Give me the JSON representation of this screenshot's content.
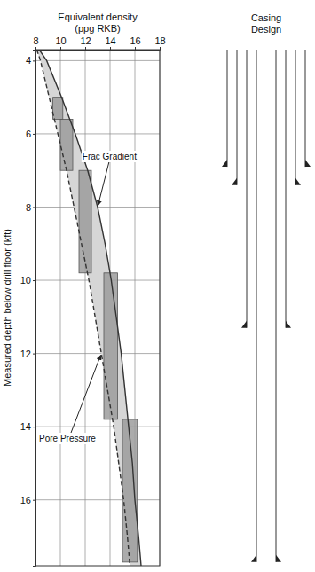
{
  "chart_data": {
    "type": "line",
    "x_label": "Equivalent density (ppg RKB)",
    "y_label": "Measured depth below drill floor (kft)",
    "xlim": [
      8,
      18
    ],
    "xticks": [
      8,
      10,
      12,
      14,
      16,
      18
    ],
    "ylim": [
      3.7,
      17.8
    ],
    "yticks": [
      4,
      6,
      8,
      10,
      12,
      14,
      16
    ],
    "grid": true,
    "series": [
      {
        "name": "Frac Gradient",
        "color": "#333333",
        "line_style": "solid",
        "x": [
          8.3,
          8.9,
          10.1,
          11.2,
          12.2,
          13.0,
          13.6,
          14.1,
          14.5,
          14.9,
          15.2,
          15.5,
          15.8,
          16.0,
          16.3,
          16.5
        ],
        "values": [
          3.7,
          4,
          5,
          6,
          7,
          8,
          9,
          10,
          11,
          12,
          13,
          14,
          15,
          16,
          17,
          17.8
        ]
      },
      {
        "name": "Pore Pressure",
        "color": "#333333",
        "line_style": "dashed",
        "x": [
          8.1,
          8.4,
          9.1,
          9.8,
          10.5,
          11.1,
          11.7,
          12.3,
          12.8,
          13.3,
          13.8,
          14.3,
          14.7,
          15.1,
          15.4,
          15.6
        ],
        "values": [
          3.7,
          4,
          5,
          6,
          7,
          8,
          9,
          10,
          11,
          12,
          13,
          14,
          15,
          16,
          17,
          17.8
        ]
      }
    ],
    "mud_windows": [
      {
        "x": [
          9.4,
          10.2
        ],
        "depth": [
          5.0,
          5.6
        ]
      },
      {
        "x": [
          10.0,
          11.0
        ],
        "depth": [
          5.6,
          7.0
        ]
      },
      {
        "x": [
          11.5,
          12.5
        ],
        "depth": [
          7.0,
          9.8
        ]
      },
      {
        "x": [
          13.5,
          14.6
        ],
        "depth": [
          9.8,
          13.8
        ]
      },
      {
        "x": [
          15.0,
          16.2
        ],
        "depth": [
          13.8,
          17.7
        ]
      }
    ],
    "casing_title": "Casing Design",
    "casing_shoe_depths": [
      6.9,
      7.4,
      11.3,
      17.7
    ]
  }
}
